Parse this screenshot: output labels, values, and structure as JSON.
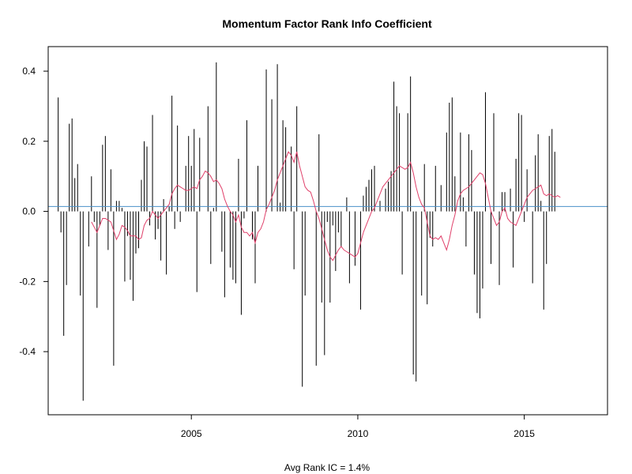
{
  "chart_data": {
    "type": "bar",
    "title": "Momentum Factor Rank Info Coefficient",
    "xlabel": "Avg Rank IC = 1.4%",
    "ylabel": "",
    "x_ticks": [
      2005,
      2010,
      2015
    ],
    "x_tick_labels": [
      "2005",
      "2010",
      "2015"
    ],
    "y_ticks": [
      -0.4,
      -0.2,
      0.0,
      0.2,
      0.4
    ],
    "y_tick_labels": [
      "-0.4",
      "-0.2",
      "0.0",
      "0.2",
      "0.4"
    ],
    "xlim": [
      2000.7,
      2017.5
    ],
    "ylim": [
      -0.58,
      0.47
    ],
    "grid": false,
    "bar_color": "#000000",
    "smoothed_color": "#e0406a",
    "avg_line_color": "#4a90c8",
    "avg_value": 0.014,
    "start_date": "2001-01",
    "values": [
      0.325,
      -0.06,
      -0.355,
      -0.21,
      0.25,
      0.265,
      0.095,
      0.135,
      -0.24,
      -0.54,
      0.0,
      -0.1,
      0.1,
      -0.03,
      -0.275,
      -0.04,
      0.19,
      0.215,
      -0.11,
      0.12,
      -0.44,
      0.03,
      0.03,
      0.01,
      -0.2,
      -0.07,
      -0.195,
      -0.255,
      -0.12,
      -0.105,
      0.09,
      0.2,
      0.185,
      -0.04,
      0.275,
      -0.08,
      -0.05,
      -0.14,
      0.035,
      -0.18,
      0.015,
      0.33,
      -0.05,
      0.245,
      -0.03,
      0.0,
      0.13,
      0.215,
      0.13,
      0.235,
      -0.23,
      0.21,
      0.0,
      0.0,
      0.3,
      -0.15,
      0.01,
      0.425,
      0.0,
      -0.115,
      -0.245,
      0.0,
      -0.16,
      -0.195,
      -0.205,
      0.15,
      -0.295,
      -0.02,
      0.26,
      0.0,
      -0.08,
      -0.205,
      0.13,
      0.0,
      0.0,
      0.405,
      0.0,
      0.32,
      0.0,
      0.42,
      0.025,
      0.26,
      0.24,
      0.0,
      0.185,
      -0.165,
      0.3,
      0.0,
      -0.5,
      -0.24,
      0.0,
      0.0,
      0.0,
      -0.44,
      0.22,
      -0.26,
      -0.41,
      -0.03,
      -0.26,
      -0.04,
      -0.17,
      -0.06,
      -0.1,
      0.0,
      0.04,
      -0.205,
      0.0,
      -0.155,
      0.0,
      -0.28,
      0.045,
      0.07,
      0.09,
      0.12,
      0.13,
      0.0,
      0.03,
      0.0,
      0.065,
      0.085,
      0.115,
      0.37,
      0.3,
      0.28,
      -0.18,
      0.0,
      0.28,
      0.385,
      -0.465,
      -0.485,
      0.0,
      -0.24,
      0.135,
      -0.265,
      -0.075,
      -0.1,
      0.13,
      0.0,
      0.075,
      0.0,
      0.225,
      0.31,
      0.325,
      0.1,
      0.0,
      0.225,
      0.04,
      -0.1,
      0.22,
      0.175,
      -0.18,
      -0.29,
      -0.305,
      -0.22,
      0.34,
      0.0,
      -0.15,
      0.28,
      0.0,
      -0.21,
      0.055,
      0.055,
      0.0,
      0.065,
      -0.16,
      0.15,
      0.28,
      0.275,
      -0.03,
      0.12,
      0.0,
      -0.205,
      0.16,
      0.22,
      0.03,
      -0.28,
      -0.15,
      0.215,
      0.235,
      0.17,
      0.0
    ],
    "smoothed": [
      null,
      null,
      null,
      null,
      null,
      null,
      null,
      null,
      null,
      null,
      null,
      null,
      -0.03,
      -0.045,
      -0.06,
      -0.04,
      -0.02,
      -0.02,
      -0.025,
      -0.03,
      -0.055,
      -0.08,
      -0.065,
      -0.04,
      -0.045,
      -0.055,
      -0.07,
      -0.07,
      -0.07,
      -0.08,
      -0.075,
      -0.04,
      -0.025,
      -0.02,
      0.0,
      -0.01,
      -0.02,
      -0.01,
      0.0,
      0.01,
      0.02,
      0.05,
      0.065,
      0.075,
      0.07,
      0.065,
      0.06,
      0.06,
      0.065,
      0.07,
      0.065,
      0.09,
      0.1,
      0.115,
      0.11,
      0.1,
      0.085,
      0.09,
      0.08,
      0.065,
      0.035,
      0.015,
      0.0,
      -0.01,
      -0.03,
      -0.01,
      -0.045,
      -0.06,
      -0.06,
      -0.07,
      -0.06,
      -0.09,
      -0.06,
      -0.05,
      -0.03,
      0.005,
      0.02,
      0.04,
      0.06,
      0.09,
      0.11,
      0.13,
      0.15,
      0.17,
      0.16,
      0.14,
      0.17,
      0.13,
      0.1,
      0.07,
      0.06,
      0.055,
      0.03,
      0.0,
      -0.02,
      -0.05,
      -0.08,
      -0.11,
      -0.13,
      -0.14,
      -0.125,
      -0.11,
      -0.1,
      -0.11,
      -0.115,
      -0.12,
      -0.125,
      -0.13,
      -0.12,
      -0.09,
      -0.06,
      -0.04,
      -0.02,
      0.0,
      0.01,
      0.03,
      0.05,
      0.07,
      0.08,
      0.09,
      0.1,
      0.11,
      0.12,
      0.13,
      0.125,
      0.12,
      0.125,
      0.14,
      0.11,
      0.07,
      0.04,
      0.02,
      0.01,
      -0.03,
      -0.07,
      -0.08,
      -0.075,
      -0.08,
      -0.07,
      -0.09,
      -0.11,
      -0.08,
      -0.04,
      -0.01,
      0.03,
      0.05,
      0.06,
      0.065,
      0.07,
      0.08,
      0.09,
      0.1,
      0.11,
      0.105,
      0.08,
      0.04,
      0.0,
      -0.02,
      -0.04,
      -0.03,
      0.0,
      0.01,
      -0.02,
      -0.03,
      -0.035,
      -0.04,
      -0.02,
      0.0,
      0.02,
      0.04,
      0.05,
      0.06,
      0.065,
      0.07,
      0.075,
      0.05,
      0.045,
      0.05,
      0.045,
      0.04,
      0.045,
      0.04
    ]
  }
}
